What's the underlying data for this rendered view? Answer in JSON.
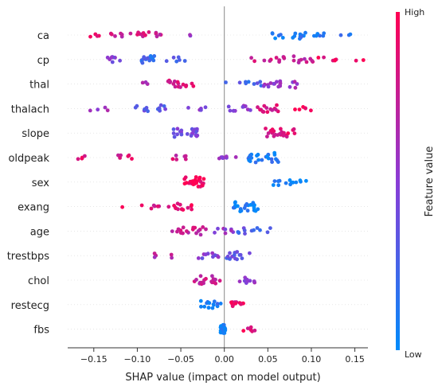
{
  "chart_data": {
    "type": "scatter",
    "subtype": "shap-beeswarm",
    "title": "",
    "xlabel": "SHAP value (impact on model output)",
    "ylabel": "",
    "xlim": [
      -0.18,
      0.165
    ],
    "xticks": [
      -0.15,
      -0.1,
      -0.05,
      0.0,
      0.05,
      0.1,
      0.15
    ],
    "xtick_labels": [
      "−0.15",
      "−0.10",
      "−0.05",
      "0.00",
      "0.05",
      "0.10",
      "0.15"
    ],
    "grid": false,
    "zero_line": true,
    "colorbar": {
      "label": "Feature value",
      "high_label": "High",
      "low_label": "Low",
      "high_color": "#ff0052",
      "low_color": "#008bfb",
      "placement": "right"
    },
    "features": [
      {
        "name": "ca",
        "clusters": [
          {
            "x": -0.15,
            "spread": 0.006,
            "n": 4,
            "v": 0.9
          },
          {
            "x": -0.125,
            "spread": 0.01,
            "n": 6,
            "v": 0.75
          },
          {
            "x": -0.09,
            "spread": 0.018,
            "n": 14,
            "v": 0.8
          },
          {
            "x": -0.04,
            "spread": 0.004,
            "n": 2,
            "v": 0.6
          },
          {
            "x": 0.075,
            "spread": 0.02,
            "n": 16,
            "v": 0.1
          },
          {
            "x": 0.11,
            "spread": 0.012,
            "n": 6,
            "v": 0.1
          },
          {
            "x": 0.14,
            "spread": 0.008,
            "n": 3,
            "v": 0.1
          }
        ]
      },
      {
        "name": "cp",
        "clusters": [
          {
            "x": -0.125,
            "spread": 0.012,
            "n": 8,
            "v": 0.45
          },
          {
            "x": -0.09,
            "spread": 0.01,
            "n": 16,
            "v": 0.2
          },
          {
            "x": -0.06,
            "spread": 0.015,
            "n": 6,
            "v": 0.25
          },
          {
            "x": 0.04,
            "spread": 0.015,
            "n": 5,
            "v": 0.8
          },
          {
            "x": 0.08,
            "spread": 0.022,
            "n": 16,
            "v": 0.75
          },
          {
            "x": 0.12,
            "spread": 0.012,
            "n": 6,
            "v": 0.9
          },
          {
            "x": 0.155,
            "spread": 0.005,
            "n": 2,
            "v": 0.95
          }
        ]
      },
      {
        "name": "thal",
        "clusters": [
          {
            "x": -0.09,
            "spread": 0.005,
            "n": 3,
            "v": 0.55
          },
          {
            "x": -0.05,
            "spread": 0.015,
            "n": 16,
            "v": 0.85
          },
          {
            "x": 0.0,
            "spread": 0.003,
            "n": 1,
            "v": 0.3
          },
          {
            "x": 0.03,
            "spread": 0.014,
            "n": 8,
            "v": 0.25
          },
          {
            "x": 0.065,
            "spread": 0.02,
            "n": 18,
            "v": 0.55
          }
        ]
      },
      {
        "name": "thalach",
        "clusters": [
          {
            "x": -0.14,
            "spread": 0.015,
            "n": 4,
            "v": 0.6
          },
          {
            "x": -0.085,
            "spread": 0.018,
            "n": 14,
            "v": 0.35
          },
          {
            "x": -0.03,
            "spread": 0.012,
            "n": 5,
            "v": 0.5
          },
          {
            "x": 0.015,
            "spread": 0.015,
            "n": 10,
            "v": 0.5
          },
          {
            "x": 0.05,
            "spread": 0.012,
            "n": 14,
            "v": 0.8
          },
          {
            "x": 0.09,
            "spread": 0.012,
            "n": 6,
            "v": 0.9
          }
        ]
      },
      {
        "name": "slope",
        "clusters": [
          {
            "x": -0.045,
            "spread": 0.016,
            "n": 22,
            "v": 0.4
          },
          {
            "x": 0.065,
            "spread": 0.018,
            "n": 22,
            "v": 0.88
          }
        ]
      },
      {
        "name": "oldpeak",
        "clusters": [
          {
            "x": -0.165,
            "spread": 0.01,
            "n": 4,
            "v": 0.9
          },
          {
            "x": -0.11,
            "spread": 0.012,
            "n": 6,
            "v": 0.85
          },
          {
            "x": -0.05,
            "spread": 0.012,
            "n": 6,
            "v": 0.8
          },
          {
            "x": 0.005,
            "spread": 0.012,
            "n": 8,
            "v": 0.5
          },
          {
            "x": 0.045,
            "spread": 0.018,
            "n": 24,
            "v": 0.12
          }
        ]
      },
      {
        "name": "sex",
        "clusters": [
          {
            "x": -0.035,
            "spread": 0.012,
            "n": 26,
            "v": 0.97
          },
          {
            "x": 0.075,
            "spread": 0.022,
            "n": 14,
            "v": 0.05
          }
        ]
      },
      {
        "name": "exang",
        "clusters": [
          {
            "x": -0.12,
            "spread": 0.004,
            "n": 1,
            "v": 0.9
          },
          {
            "x": -0.085,
            "spread": 0.012,
            "n": 6,
            "v": 0.85
          },
          {
            "x": -0.05,
            "spread": 0.014,
            "n": 14,
            "v": 0.92
          },
          {
            "x": 0.025,
            "spread": 0.015,
            "n": 26,
            "v": 0.05
          }
        ]
      },
      {
        "name": "age",
        "clusters": [
          {
            "x": -0.04,
            "spread": 0.02,
            "n": 18,
            "v": 0.75
          },
          {
            "x": 0.0,
            "spread": 0.012,
            "n": 8,
            "v": 0.55
          },
          {
            "x": 0.035,
            "spread": 0.02,
            "n": 12,
            "v": 0.3
          }
        ]
      },
      {
        "name": "trestbps",
        "clusters": [
          {
            "x": -0.07,
            "spread": 0.014,
            "n": 5,
            "v": 0.7
          },
          {
            "x": -0.02,
            "spread": 0.014,
            "n": 10,
            "v": 0.45
          },
          {
            "x": 0.015,
            "spread": 0.014,
            "n": 16,
            "v": 0.35
          }
        ]
      },
      {
        "name": "chol",
        "clusters": [
          {
            "x": -0.02,
            "spread": 0.015,
            "n": 20,
            "v": 0.75
          },
          {
            "x": 0.025,
            "spread": 0.015,
            "n": 10,
            "v": 0.5
          }
        ]
      },
      {
        "name": "restecg",
        "clusters": [
          {
            "x": -0.015,
            "spread": 0.012,
            "n": 16,
            "v": 0.1
          },
          {
            "x": 0.015,
            "spread": 0.008,
            "n": 12,
            "v": 0.9
          }
        ]
      },
      {
        "name": "fbs",
        "clusters": [
          {
            "x": -0.002,
            "spread": 0.003,
            "n": 20,
            "v": 0.05
          },
          {
            "x": 0.028,
            "spread": 0.008,
            "n": 6,
            "v": 0.9
          }
        ]
      }
    ]
  }
}
